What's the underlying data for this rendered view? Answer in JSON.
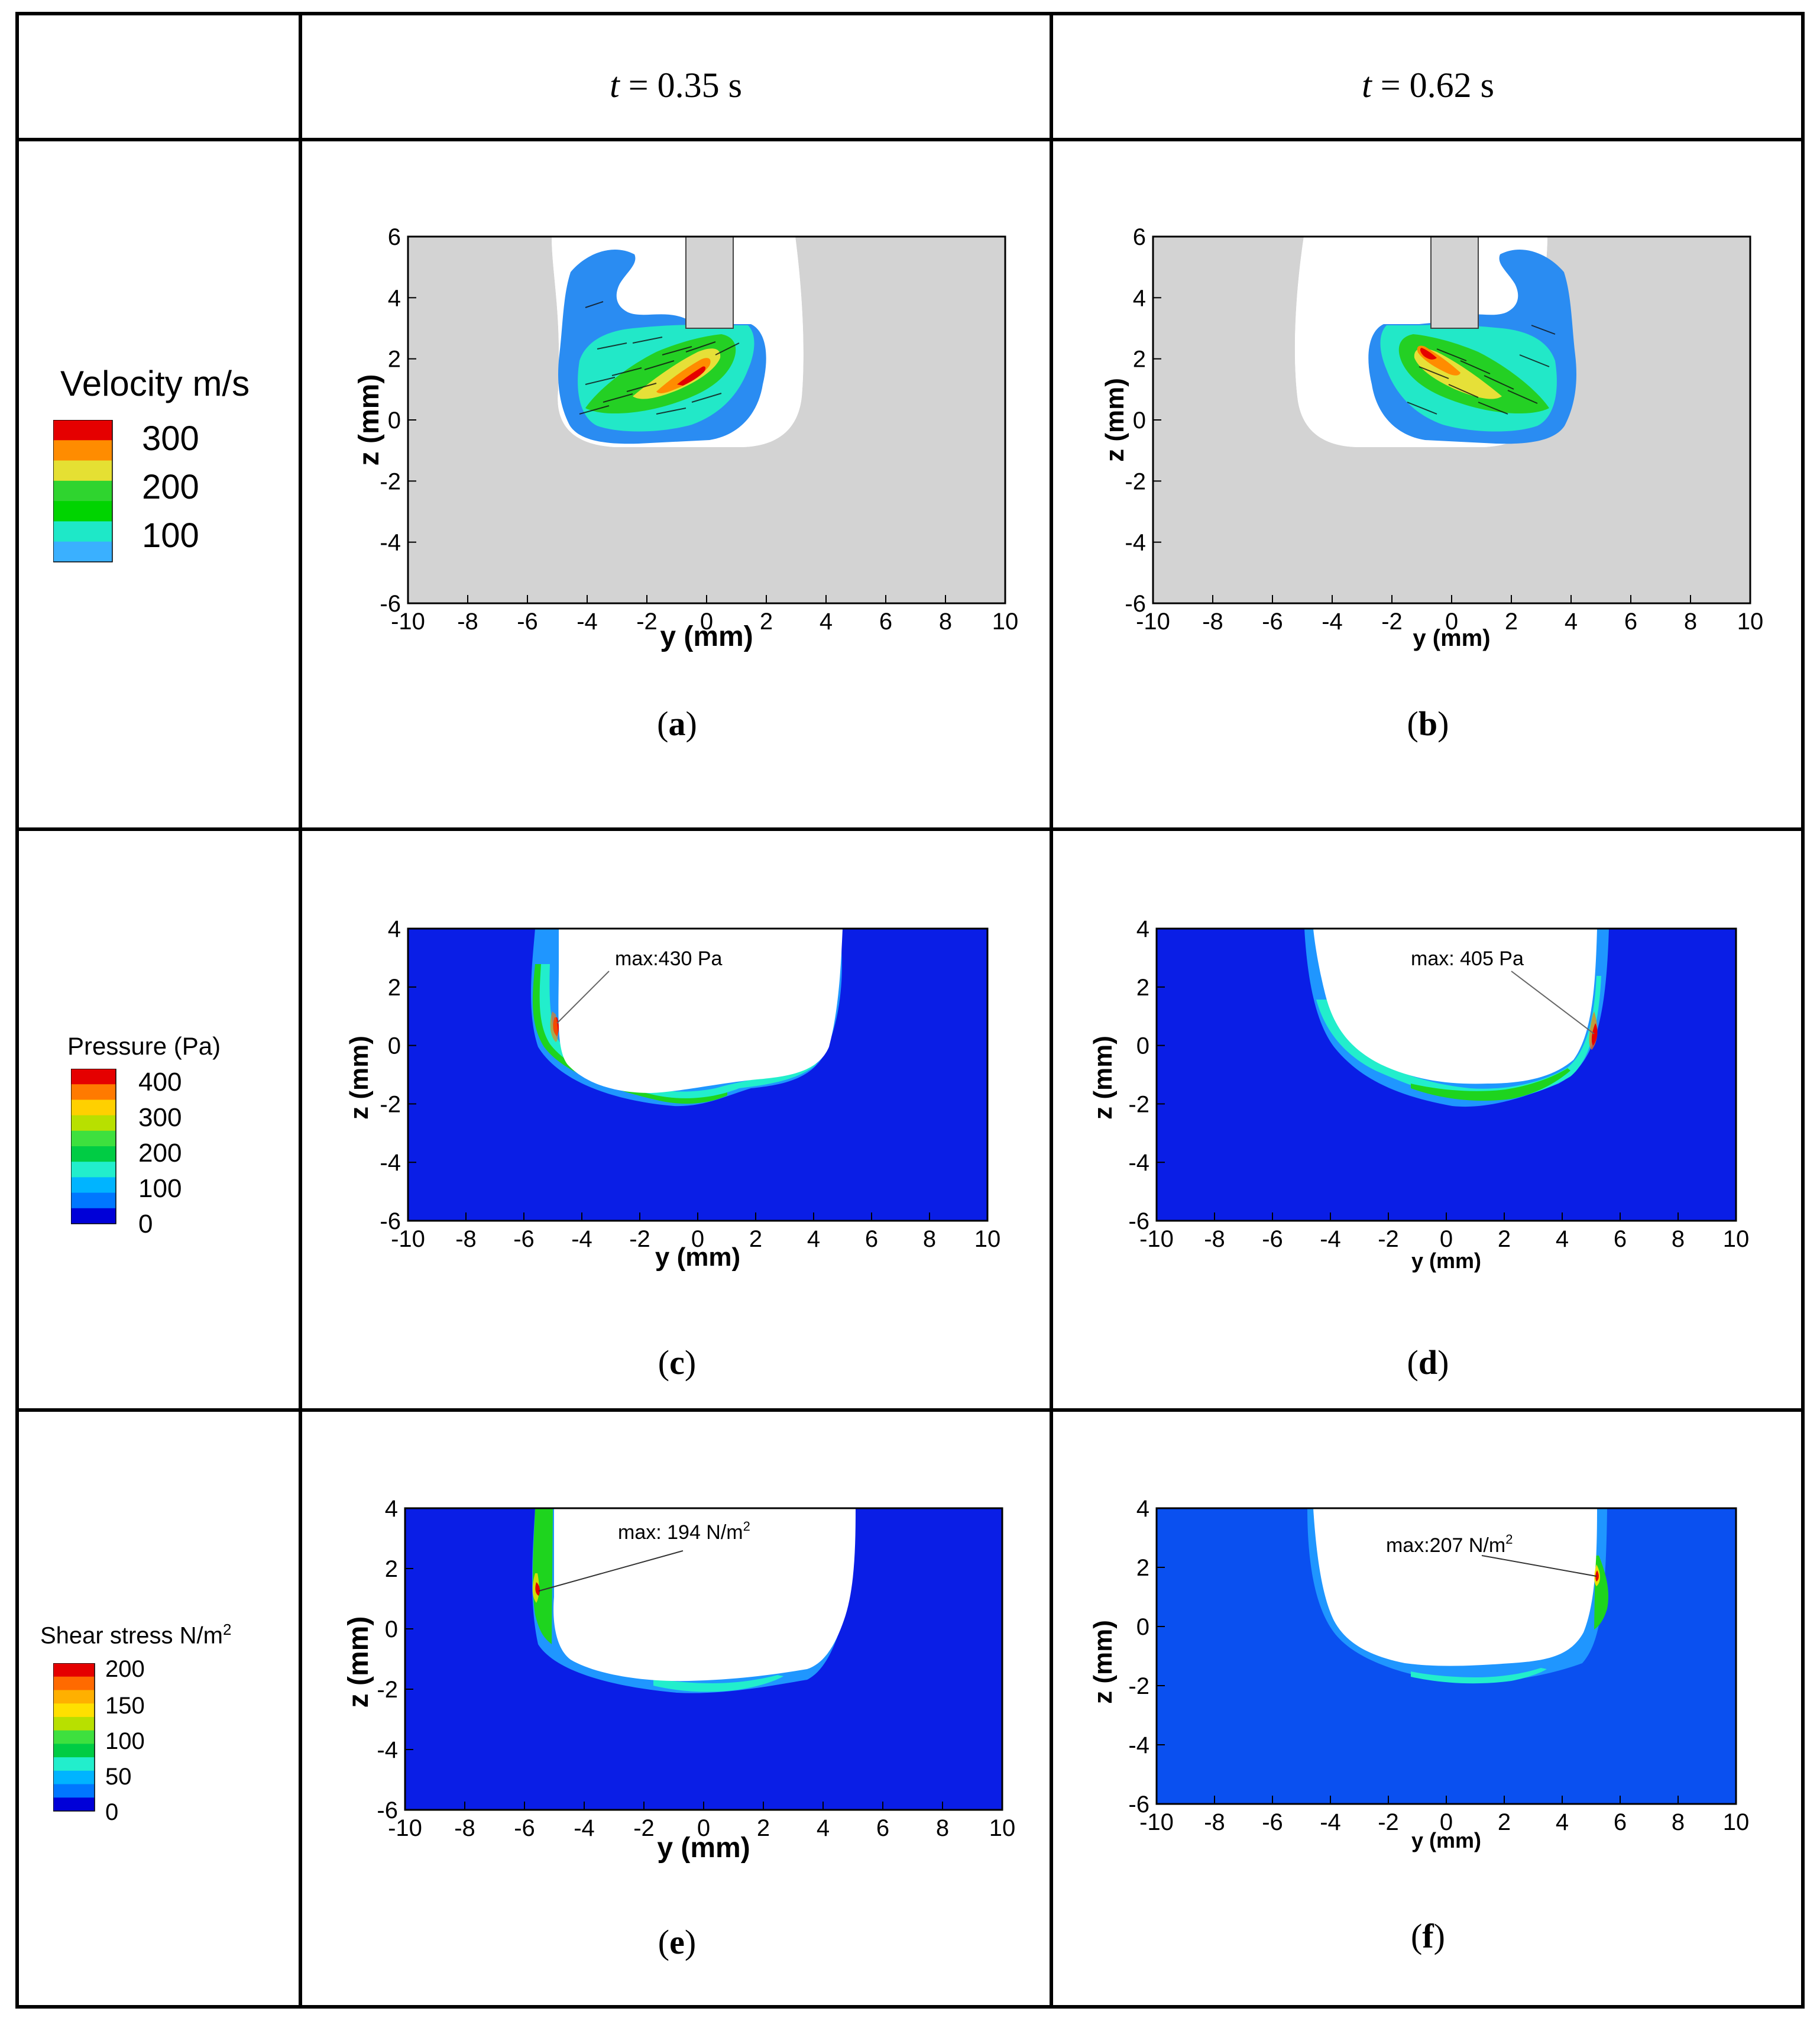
{
  "header": {
    "col1": {
      "var": "t",
      "rest": " = 0.35 s"
    },
    "col2": {
      "var": "t",
      "rest": " = 0.62 s"
    }
  },
  "legends": {
    "velocity": {
      "title": "Velocity m/s",
      "labels": [
        "300",
        "200",
        "100"
      ],
      "colors": [
        "#e50000",
        "#ff8c00",
        "#e5e033",
        "#2fd42f",
        "#00d400",
        "#1ee8c8",
        "#3ab0ff"
      ]
    },
    "pressure": {
      "title": "Pressure (Pa)",
      "labels": [
        "400",
        "300",
        "200",
        "100",
        "0"
      ],
      "colors": [
        "#e50000",
        "#ff7a00",
        "#ffd000",
        "#b8e000",
        "#3ee03e",
        "#00cc44",
        "#22eecc",
        "#00b4ff",
        "#0077ff",
        "#0000d8"
      ]
    },
    "shear": {
      "title": "Shear stress N/m",
      "title_sup": "2",
      "labels": [
        "200",
        "150",
        "100",
        "50",
        "0"
      ],
      "colors": [
        "#e50000",
        "#ff6a00",
        "#ffb000",
        "#ffe000",
        "#b8e000",
        "#3ee03e",
        "#00cc44",
        "#22eecc",
        "#00b4ff",
        "#0077ff",
        "#0000d8"
      ]
    }
  },
  "axes": {
    "xlabel": "y (mm)",
    "ylabel": "z (mm)",
    "xticks": [
      "-10",
      "-8",
      "-6",
      "-4",
      "-2",
      "0",
      "2",
      "4",
      "6",
      "8",
      "10"
    ],
    "yticks": [
      "-6",
      "-4",
      "-2",
      "0",
      "2",
      "4",
      "6"
    ],
    "yticks_short": [
      "-6",
      "-4",
      "-2",
      "0",
      "2",
      "4"
    ]
  },
  "colors": {
    "solid_gray": "#d3d3d3",
    "background_blue": "#0a1ee6",
    "blue_light": "#1f96ff",
    "cyan": "#22eecc",
    "green": "#1ed41e",
    "yellow": "#e8e040",
    "orange": "#ff8c00",
    "red": "#e50000"
  },
  "captions": {
    "a": "a",
    "b": "b",
    "c": "c",
    "d": "d",
    "e": "e",
    "f": "f"
  },
  "annotations": {
    "c": "max:430 Pa",
    "d": "max: 405 Pa",
    "e": {
      "text": "max: 194 N/m",
      "sup": "2"
    },
    "f": {
      "text": "max:207 N/m",
      "sup": "2"
    }
  }
}
